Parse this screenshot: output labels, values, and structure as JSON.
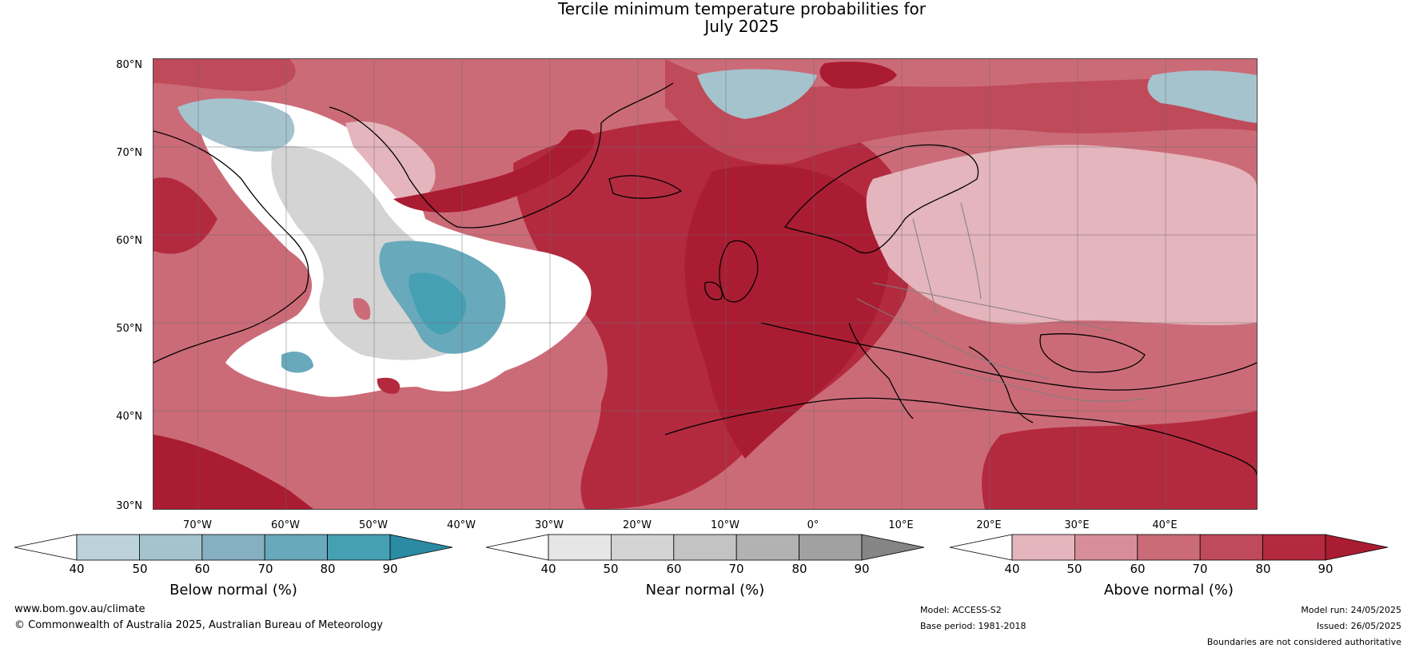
{
  "title": {
    "line1": "Tercile minimum temperature probabilities for",
    "line2": "July 2025"
  },
  "map": {
    "lat_labels": [
      "80°N",
      "70°N",
      "60°N",
      "50°N",
      "40°N",
      "30°N"
    ],
    "lon_labels": [
      "70°W",
      "60°W",
      "50°W",
      "40°W",
      "30°W",
      "20°W",
      "10°W",
      "0°",
      "10°E",
      "20°E",
      "30°E",
      "40°E"
    ]
  },
  "colorbars": [
    {
      "title": "Below normal (%)",
      "ticks": [
        "40",
        "50",
        "60",
        "70",
        "80",
        "90"
      ],
      "colors": [
        "#ffffff",
        "#bcd2da",
        "#a4c3cd",
        "#86afc1",
        "#68a9bb",
        "#46a0b3",
        "#2a8ba2"
      ]
    },
    {
      "title": "Near normal (%)",
      "ticks": [
        "40",
        "50",
        "60",
        "70",
        "80",
        "90"
      ],
      "colors": [
        "#ffffff",
        "#e6e6e6",
        "#d4d4d4",
        "#c3c3c3",
        "#b2b2b2",
        "#a1a1a1",
        "#858585"
      ]
    },
    {
      "title": "Above normal (%)",
      "ticks": [
        "40",
        "50",
        "60",
        "70",
        "80",
        "90"
      ],
      "colors": [
        "#ffffff",
        "#e4b5bc",
        "#d88e98",
        "#cc6b78",
        "#bf4a5a",
        "#b32a3f",
        "#aa1c32"
      ]
    }
  ],
  "footer": {
    "website": "www.bom.gov.au/climate",
    "copyright": "© Commonwealth of Australia 2025, Australian Bureau of Meteorology",
    "model": "Model: ACCESS-S2",
    "base_period": "Base period: 1981-2018",
    "model_run": "Model run: 24/05/2025",
    "issued": "Issued: 26/05/2025",
    "disclaimer": "Boundaries are not considered authoritative"
  }
}
